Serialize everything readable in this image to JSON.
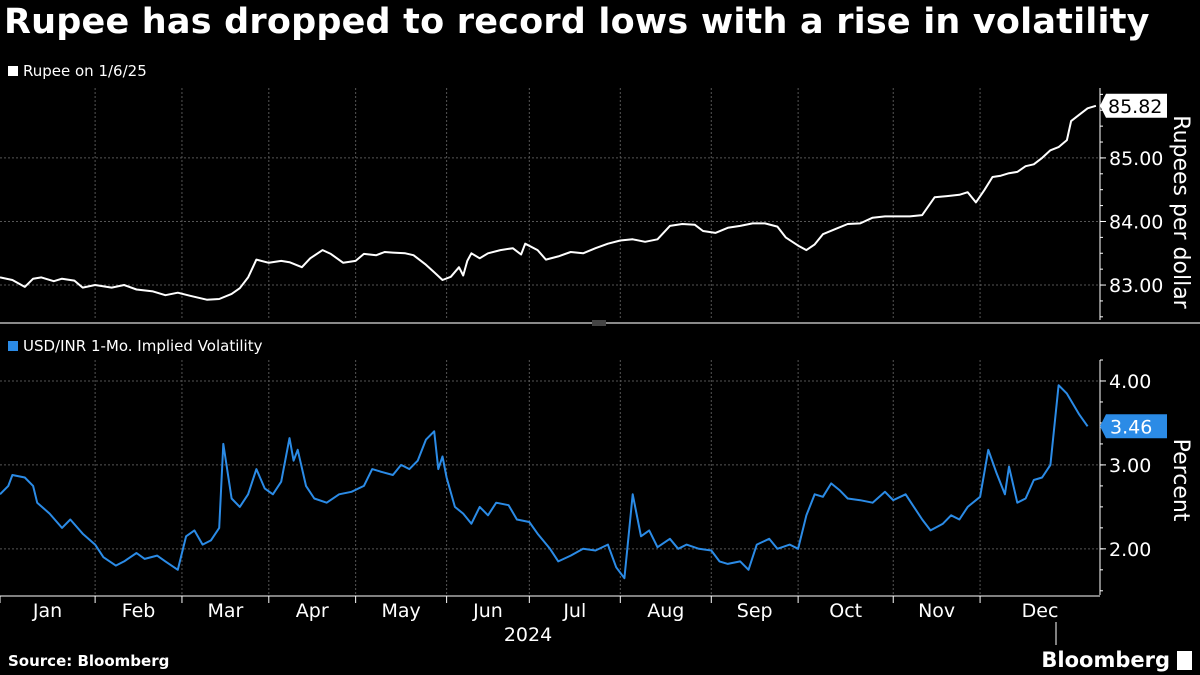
{
  "title": "Rupee has dropped to record lows with a rise in volatility",
  "source": "Source: Bloomberg",
  "brand": "Bloomberg",
  "colors": {
    "background": "#000000",
    "rupee_line": "#ffffff",
    "vol_line": "#2b8be6",
    "grid": "#555555"
  },
  "chart_data": [
    {
      "type": "line",
      "title": "Rupee has dropped to record lows with a rise in volatility",
      "series": [
        {
          "name": "Rupee on 1/6/25",
          "last_value": "85.82"
        }
      ],
      "ylabel": "Rupees per dollar",
      "ylim": [
        82.45,
        86.1
      ],
      "yticks": [
        83,
        84,
        85
      ],
      "ytick_labels": [
        "83.00",
        "84.00",
        "85.00"
      ],
      "months": [
        "Jan",
        "Feb",
        "Mar",
        "Apr",
        "May",
        "Jun",
        "Jul",
        "Aug",
        "Sep",
        "Oct",
        "Nov",
        "Dec"
      ],
      "xlabel": "2024",
      "points": [
        [
          0,
          83.12
        ],
        [
          3,
          83.08
        ],
        [
          6,
          82.97
        ],
        [
          8,
          83.1
        ],
        [
          10,
          83.12
        ],
        [
          13,
          83.06
        ],
        [
          15,
          83.1
        ],
        [
          18,
          83.07
        ],
        [
          20,
          82.96
        ],
        [
          23,
          83.0
        ],
        [
          27,
          82.96
        ],
        [
          30,
          83.0
        ],
        [
          33,
          82.93
        ],
        [
          37,
          82.9
        ],
        [
          40,
          82.84
        ],
        [
          43,
          82.88
        ],
        [
          46,
          82.83
        ],
        [
          50,
          82.77
        ],
        [
          53,
          82.78
        ],
        [
          56,
          82.86
        ],
        [
          58,
          82.95
        ],
        [
          60,
          83.12
        ],
        [
          62,
          83.4
        ],
        [
          65,
          83.35
        ],
        [
          68,
          83.38
        ],
        [
          70,
          83.36
        ],
        [
          73,
          83.28
        ],
        [
          75,
          83.42
        ],
        [
          78,
          83.55
        ],
        [
          80,
          83.49
        ],
        [
          83,
          83.35
        ],
        [
          86,
          83.38
        ],
        [
          88,
          83.49
        ],
        [
          91,
          83.47
        ],
        [
          93,
          83.52
        ],
        [
          95,
          83.51
        ],
        [
          98,
          83.5
        ],
        [
          100,
          83.47
        ],
        [
          103,
          83.32
        ],
        [
          105,
          83.2
        ],
        [
          107,
          83.08
        ],
        [
          109,
          83.13
        ],
        [
          111,
          83.28
        ],
        [
          112,
          83.15
        ],
        [
          113,
          83.38
        ],
        [
          114,
          83.5
        ],
        [
          116,
          83.42
        ],
        [
          118,
          83.5
        ],
        [
          121,
          83.55
        ],
        [
          124,
          83.58
        ],
        [
          126,
          83.48
        ],
        [
          127,
          83.65
        ],
        [
          130,
          83.55
        ],
        [
          132,
          83.4
        ],
        [
          135,
          83.45
        ],
        [
          138,
          83.52
        ],
        [
          141,
          83.5
        ],
        [
          144,
          83.58
        ],
        [
          147,
          83.65
        ],
        [
          150,
          83.7
        ],
        [
          153,
          83.72
        ],
        [
          156,
          83.68
        ],
        [
          159,
          83.72
        ],
        [
          162,
          83.93
        ],
        [
          165,
          83.96
        ],
        [
          168,
          83.95
        ],
        [
          170,
          83.85
        ],
        [
          173,
          83.82
        ],
        [
          176,
          83.9
        ],
        [
          179,
          83.93
        ],
        [
          182,
          83.97
        ],
        [
          185,
          83.97
        ],
        [
          188,
          83.92
        ],
        [
          190,
          83.75
        ],
        [
          193,
          83.62
        ],
        [
          195,
          83.55
        ],
        [
          197,
          83.64
        ],
        [
          199,
          83.8
        ],
        [
          202,
          83.88
        ],
        [
          205,
          83.96
        ],
        [
          208,
          83.97
        ],
        [
          211,
          84.06
        ],
        [
          214,
          84.08
        ],
        [
          217,
          84.08
        ],
        [
          220,
          84.08
        ],
        [
          223,
          84.1
        ],
        [
          226,
          84.38
        ],
        [
          229,
          84.4
        ],
        [
          232,
          84.42
        ],
        [
          234,
          84.46
        ],
        [
          236,
          84.3
        ],
        [
          238,
          84.49
        ],
        [
          240,
          84.7
        ],
        [
          242,
          84.72
        ],
        [
          244,
          84.76
        ],
        [
          246,
          84.78
        ],
        [
          248,
          84.87
        ],
        [
          250,
          84.9
        ],
        [
          252,
          85.0
        ],
        [
          254,
          85.12
        ],
        [
          256,
          85.17
        ],
        [
          258,
          85.28
        ],
        [
          259,
          85.58
        ],
        [
          261,
          85.68
        ],
        [
          263,
          85.78
        ],
        [
          265,
          85.82
        ]
      ]
    },
    {
      "type": "line",
      "series": [
        {
          "name": "USD/INR 1-Mo. Implied Volatility",
          "last_value": "3.46"
        }
      ],
      "ylabel": "Percent",
      "ylim": [
        1.45,
        4.25
      ],
      "yticks": [
        2,
        3,
        4
      ],
      "ytick_labels": [
        "2.00",
        "3.00",
        "4.00"
      ],
      "points": [
        [
          0,
          2.65
        ],
        [
          2,
          2.75
        ],
        [
          3,
          2.88
        ],
        [
          6,
          2.85
        ],
        [
          8,
          2.75
        ],
        [
          9,
          2.55
        ],
        [
          12,
          2.42
        ],
        [
          15,
          2.25
        ],
        [
          17,
          2.35
        ],
        [
          20,
          2.18
        ],
        [
          23,
          2.05
        ],
        [
          25,
          1.9
        ],
        [
          28,
          1.8
        ],
        [
          30,
          1.85
        ],
        [
          33,
          1.95
        ],
        [
          35,
          1.88
        ],
        [
          38,
          1.92
        ],
        [
          40,
          1.85
        ],
        [
          43,
          1.75
        ],
        [
          45,
          2.15
        ],
        [
          47,
          2.22
        ],
        [
          49,
          2.05
        ],
        [
          51,
          2.1
        ],
        [
          53,
          2.25
        ],
        [
          54,
          3.25
        ],
        [
          56,
          2.6
        ],
        [
          58,
          2.5
        ],
        [
          60,
          2.65
        ],
        [
          62,
          2.95
        ],
        [
          64,
          2.72
        ],
        [
          66,
          2.65
        ],
        [
          68,
          2.8
        ],
        [
          70,
          3.32
        ],
        [
          71,
          3.05
        ],
        [
          72,
          3.18
        ],
        [
          74,
          2.75
        ],
        [
          76,
          2.6
        ],
        [
          79,
          2.55
        ],
        [
          82,
          2.65
        ],
        [
          85,
          2.68
        ],
        [
          88,
          2.75
        ],
        [
          90,
          2.95
        ],
        [
          92,
          2.92
        ],
        [
          95,
          2.88
        ],
        [
          97,
          3.0
        ],
        [
          99,
          2.95
        ],
        [
          101,
          3.05
        ],
        [
          103,
          3.3
        ],
        [
          105,
          3.4
        ],
        [
          106,
          2.95
        ],
        [
          107,
          3.1
        ],
        [
          108,
          2.85
        ],
        [
          110,
          2.5
        ],
        [
          112,
          2.42
        ],
        [
          114,
          2.3
        ],
        [
          116,
          2.5
        ],
        [
          118,
          2.4
        ],
        [
          120,
          2.55
        ],
        [
          123,
          2.52
        ],
        [
          125,
          2.35
        ],
        [
          128,
          2.32
        ],
        [
          130,
          2.18
        ],
        [
          133,
          2.0
        ],
        [
          135,
          1.85
        ],
        [
          138,
          1.92
        ],
        [
          141,
          2.0
        ],
        [
          144,
          1.98
        ],
        [
          147,
          2.05
        ],
        [
          149,
          1.78
        ],
        [
          151,
          1.65
        ],
        [
          153,
          2.65
        ],
        [
          155,
          2.15
        ],
        [
          157,
          2.22
        ],
        [
          159,
          2.02
        ],
        [
          162,
          2.12
        ],
        [
          164,
          2.0
        ],
        [
          166,
          2.05
        ],
        [
          169,
          2.0
        ],
        [
          172,
          1.98
        ],
        [
          174,
          1.85
        ],
        [
          176,
          1.82
        ],
        [
          179,
          1.85
        ],
        [
          181,
          1.75
        ],
        [
          183,
          2.05
        ],
        [
          186,
          2.12
        ],
        [
          188,
          2.0
        ],
        [
          191,
          2.05
        ],
        [
          193,
          2.0
        ],
        [
          195,
          2.4
        ],
        [
          197,
          2.65
        ],
        [
          199,
          2.62
        ],
        [
          201,
          2.78
        ],
        [
          203,
          2.7
        ],
        [
          205,
          2.6
        ],
        [
          208,
          2.58
        ],
        [
          211,
          2.55
        ],
        [
          214,
          2.68
        ],
        [
          216,
          2.58
        ],
        [
          219,
          2.65
        ],
        [
          221,
          2.5
        ],
        [
          223,
          2.35
        ],
        [
          225,
          2.22
        ],
        [
          228,
          2.3
        ],
        [
          230,
          2.4
        ],
        [
          232,
          2.35
        ],
        [
          234,
          2.5
        ],
        [
          237,
          2.62
        ],
        [
          239,
          3.18
        ],
        [
          241,
          2.9
        ],
        [
          243,
          2.65
        ],
        [
          244,
          2.98
        ],
        [
          246,
          2.55
        ],
        [
          248,
          2.6
        ],
        [
          250,
          2.82
        ],
        [
          252,
          2.85
        ],
        [
          254,
          3.0
        ],
        [
          256,
          3.95
        ],
        [
          258,
          3.85
        ],
        [
          261,
          3.6
        ],
        [
          263,
          3.46
        ]
      ]
    }
  ]
}
